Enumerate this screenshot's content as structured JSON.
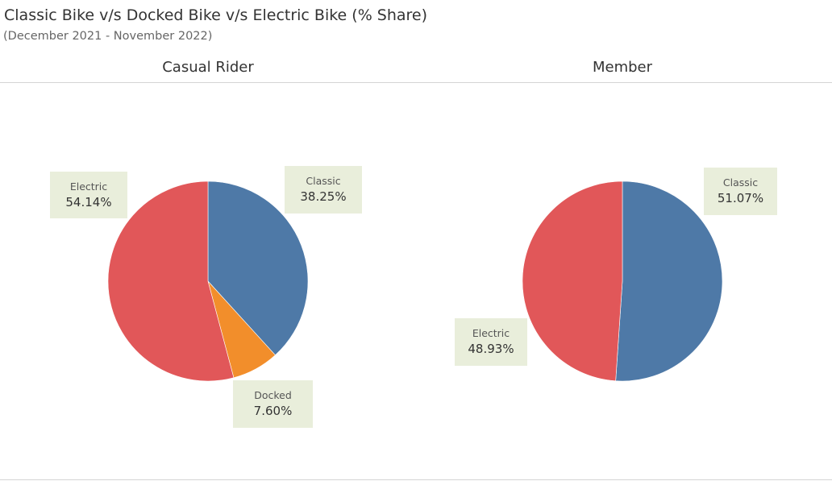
{
  "title": "Classic Bike v/s Docked Bike v/s Electric Bike (% Share)",
  "subtitle": "(December 2021 - November 2022)",
  "colors": {
    "classic": "#4e79a7",
    "electric": "#e15759",
    "docked": "#f28e2b",
    "label_bg": "#e9eedb"
  },
  "chart_data": [
    {
      "type": "pie",
      "title": "Casual Rider",
      "slices": [
        {
          "name": "Classic",
          "value": 38.25,
          "label": "38.25%"
        },
        {
          "name": "Docked",
          "value": 7.6,
          "label": "7.60%"
        },
        {
          "name": "Electric",
          "value": 54.14,
          "label": "54.14%"
        }
      ]
    },
    {
      "type": "pie",
      "title": "Member",
      "slices": [
        {
          "name": "Classic",
          "value": 51.07,
          "label": "51.07%"
        },
        {
          "name": "Electric",
          "value": 48.93,
          "label": "48.93%"
        }
      ]
    }
  ]
}
